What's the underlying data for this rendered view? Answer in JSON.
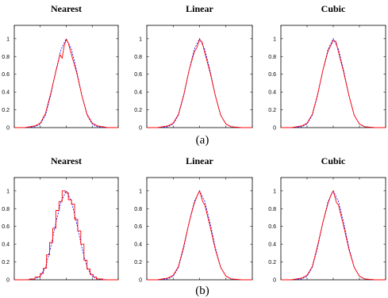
{
  "captions": [
    "(a)",
    "(b)"
  ],
  "chart_data": [
    {
      "type": "line",
      "title": "Nearest",
      "ylim": [
        0,
        1.15
      ],
      "xlim": [
        -1,
        1
      ],
      "yticks": [
        "0",
        "0.2",
        "0.4",
        "0.6",
        "0.8",
        "1"
      ],
      "grid": false,
      "series": [
        {
          "style": "reference",
          "color": "#0000ff",
          "dash": true,
          "x": [
            -1,
            -0.8,
            -0.6,
            -0.5,
            -0.4,
            -0.3,
            -0.2,
            -0.1,
            0,
            0.1,
            0.2,
            0.3,
            0.4,
            0.5,
            0.6,
            0.8,
            1
          ],
          "values": [
            0,
            0,
            0.01,
            0.04,
            0.14,
            0.36,
            0.64,
            0.88,
            1,
            0.88,
            0.64,
            0.36,
            0.14,
            0.04,
            0.01,
            0,
            0
          ]
        },
        {
          "style": "measured",
          "color": "#ff0000",
          "dash": false,
          "x": [
            -1,
            -0.8,
            -0.6,
            -0.5,
            -0.4,
            -0.3,
            -0.2,
            -0.12,
            -0.08,
            -0.04,
            0,
            0.04,
            0.1,
            0.2,
            0.3,
            0.4,
            0.5,
            0.6,
            0.8,
            1
          ],
          "values": [
            0,
            0,
            0.02,
            0.05,
            0.16,
            0.38,
            0.63,
            0.82,
            0.78,
            0.92,
            0.99,
            0.95,
            0.82,
            0.62,
            0.36,
            0.15,
            0.05,
            0.02,
            0,
            0
          ]
        }
      ]
    },
    {
      "type": "line",
      "title": "Linear",
      "ylim": [
        0,
        1.15
      ],
      "xlim": [
        -1,
        1
      ],
      "yticks": [
        "0",
        "0.2",
        "0.4",
        "0.6",
        "0.8",
        "1"
      ],
      "grid": false,
      "series": [
        {
          "style": "reference",
          "color": "#0000ff",
          "dash": true,
          "x": [
            -1,
            -0.8,
            -0.6,
            -0.5,
            -0.4,
            -0.3,
            -0.2,
            -0.1,
            0,
            0.1,
            0.2,
            0.3,
            0.4,
            0.5,
            0.6,
            0.8,
            1
          ],
          "values": [
            0,
            0,
            0.01,
            0.04,
            0.14,
            0.36,
            0.64,
            0.88,
            1,
            0.88,
            0.64,
            0.36,
            0.14,
            0.04,
            0.01,
            0,
            0
          ]
        },
        {
          "style": "measured",
          "color": "#ff0000",
          "dash": false,
          "x": [
            -1,
            -0.8,
            -0.6,
            -0.5,
            -0.4,
            -0.3,
            -0.2,
            -0.1,
            -0.05,
            0,
            0.05,
            0.1,
            0.2,
            0.3,
            0.4,
            0.5,
            0.6,
            0.8,
            1
          ],
          "values": [
            0,
            0,
            0.02,
            0.05,
            0.15,
            0.37,
            0.64,
            0.85,
            0.9,
            0.99,
            0.96,
            0.84,
            0.62,
            0.36,
            0.14,
            0.04,
            0.01,
            0,
            0
          ]
        }
      ]
    },
    {
      "type": "line",
      "title": "Cubic",
      "ylim": [
        0,
        1.15
      ],
      "xlim": [
        -1,
        1
      ],
      "yticks": [
        "0",
        "0.2",
        "0.4",
        "0.6",
        "0.8",
        "1"
      ],
      "grid": false,
      "series": [
        {
          "style": "reference",
          "color": "#0000ff",
          "dash": true,
          "x": [
            -1,
            -0.8,
            -0.6,
            -0.5,
            -0.4,
            -0.3,
            -0.2,
            -0.1,
            0,
            0.1,
            0.2,
            0.3,
            0.4,
            0.5,
            0.6,
            0.8,
            1
          ],
          "values": [
            0,
            0,
            0.01,
            0.04,
            0.14,
            0.36,
            0.64,
            0.88,
            1,
            0.88,
            0.64,
            0.36,
            0.14,
            0.04,
            0.01,
            0,
            0
          ]
        },
        {
          "style": "measured",
          "color": "#ff0000",
          "dash": false,
          "x": [
            -1,
            -0.8,
            -0.6,
            -0.5,
            -0.4,
            -0.3,
            -0.2,
            -0.1,
            -0.05,
            0,
            0.05,
            0.1,
            0.2,
            0.3,
            0.4,
            0.5,
            0.6,
            0.8,
            1
          ],
          "values": [
            0,
            0,
            0.02,
            0.05,
            0.15,
            0.37,
            0.64,
            0.86,
            0.92,
            0.98,
            0.97,
            0.85,
            0.62,
            0.36,
            0.14,
            0.04,
            0.01,
            0,
            0
          ]
        }
      ]
    },
    {
      "type": "line",
      "title": "Nearest",
      "ylim": [
        0,
        1.15
      ],
      "xlim": [
        -1,
        1
      ],
      "yticks": [
        "0",
        "0.2",
        "0.4",
        "0.6",
        "0.8",
        "1"
      ],
      "grid": false,
      "series": [
        {
          "style": "reference",
          "color": "#0000ff",
          "dash": true,
          "x": [
            -1,
            -0.8,
            -0.6,
            -0.5,
            -0.4,
            -0.3,
            -0.2,
            -0.1,
            0,
            0.1,
            0.2,
            0.3,
            0.4,
            0.5,
            0.6,
            0.8,
            1
          ],
          "values": [
            0,
            0,
            0.01,
            0.04,
            0.14,
            0.36,
            0.64,
            0.88,
            1,
            0.88,
            0.64,
            0.36,
            0.14,
            0.04,
            0.01,
            0,
            0
          ]
        },
        {
          "style": "measured",
          "color": "#ff0000",
          "dash": false,
          "step": true,
          "x": [
            -1,
            -0.8,
            -0.7,
            -0.6,
            -0.5,
            -0.44,
            -0.38,
            -0.32,
            -0.26,
            -0.2,
            -0.14,
            -0.08,
            -0.02,
            0.04,
            0.1,
            0.16,
            0.22,
            0.28,
            0.34,
            0.4,
            0.46,
            0.52,
            0.58,
            0.7,
            0.8,
            1
          ],
          "values": [
            0,
            0,
            0.01,
            0.03,
            0.07,
            0.13,
            0.28,
            0.42,
            0.58,
            0.78,
            0.88,
            1,
            0.98,
            0.9,
            0.85,
            0.68,
            0.55,
            0.4,
            0.22,
            0.12,
            0.06,
            0.03,
            0.01,
            0,
            0,
            0
          ]
        }
      ]
    },
    {
      "type": "line",
      "title": "Linear",
      "ylim": [
        0,
        1.15
      ],
      "xlim": [
        -1,
        1
      ],
      "yticks": [
        "0",
        "0.2",
        "0.4",
        "0.6",
        "0.8",
        "1"
      ],
      "grid": false,
      "series": [
        {
          "style": "reference",
          "color": "#0000ff",
          "dash": true,
          "x": [
            -1,
            -0.8,
            -0.6,
            -0.5,
            -0.4,
            -0.3,
            -0.2,
            -0.1,
            0,
            0.1,
            0.2,
            0.3,
            0.4,
            0.5,
            0.6,
            0.8,
            1
          ],
          "values": [
            0,
            0,
            0.01,
            0.04,
            0.14,
            0.36,
            0.64,
            0.88,
            1,
            0.88,
            0.64,
            0.36,
            0.14,
            0.04,
            0.01,
            0,
            0
          ]
        },
        {
          "style": "measured",
          "color": "#ff0000",
          "dash": false,
          "x": [
            -1,
            -0.8,
            -0.6,
            -0.5,
            -0.4,
            -0.3,
            -0.2,
            -0.1,
            -0.04,
            0,
            0.06,
            0.1,
            0.2,
            0.3,
            0.4,
            0.5,
            0.6,
            0.8,
            1
          ],
          "values": [
            0,
            0,
            0.02,
            0.05,
            0.15,
            0.38,
            0.64,
            0.86,
            0.95,
            1,
            0.88,
            0.84,
            0.6,
            0.34,
            0.14,
            0.04,
            0.01,
            0,
            0
          ]
        }
      ]
    },
    {
      "type": "line",
      "title": "Cubic",
      "ylim": [
        0,
        1.15
      ],
      "xlim": [
        -1,
        1
      ],
      "yticks": [
        "0",
        "0.2",
        "0.4",
        "0.6",
        "0.8",
        "1"
      ],
      "grid": false,
      "series": [
        {
          "style": "reference",
          "color": "#0000ff",
          "dash": true,
          "x": [
            -1,
            -0.8,
            -0.6,
            -0.5,
            -0.4,
            -0.3,
            -0.2,
            -0.1,
            0,
            0.1,
            0.2,
            0.3,
            0.4,
            0.5,
            0.6,
            0.8,
            1
          ],
          "values": [
            0,
            0,
            0.01,
            0.04,
            0.14,
            0.36,
            0.64,
            0.88,
            1,
            0.88,
            0.64,
            0.36,
            0.14,
            0.04,
            0.01,
            0,
            0
          ]
        },
        {
          "style": "measured",
          "color": "#ff0000",
          "dash": false,
          "x": [
            -1,
            -0.8,
            -0.6,
            -0.5,
            -0.4,
            -0.3,
            -0.2,
            -0.1,
            -0.04,
            0,
            0.06,
            0.1,
            0.2,
            0.3,
            0.4,
            0.5,
            0.6,
            0.8,
            1
          ],
          "values": [
            0,
            0,
            0.02,
            0.05,
            0.15,
            0.38,
            0.64,
            0.86,
            0.96,
            1,
            0.87,
            0.84,
            0.6,
            0.34,
            0.14,
            0.04,
            0.01,
            0,
            0
          ]
        }
      ]
    }
  ]
}
